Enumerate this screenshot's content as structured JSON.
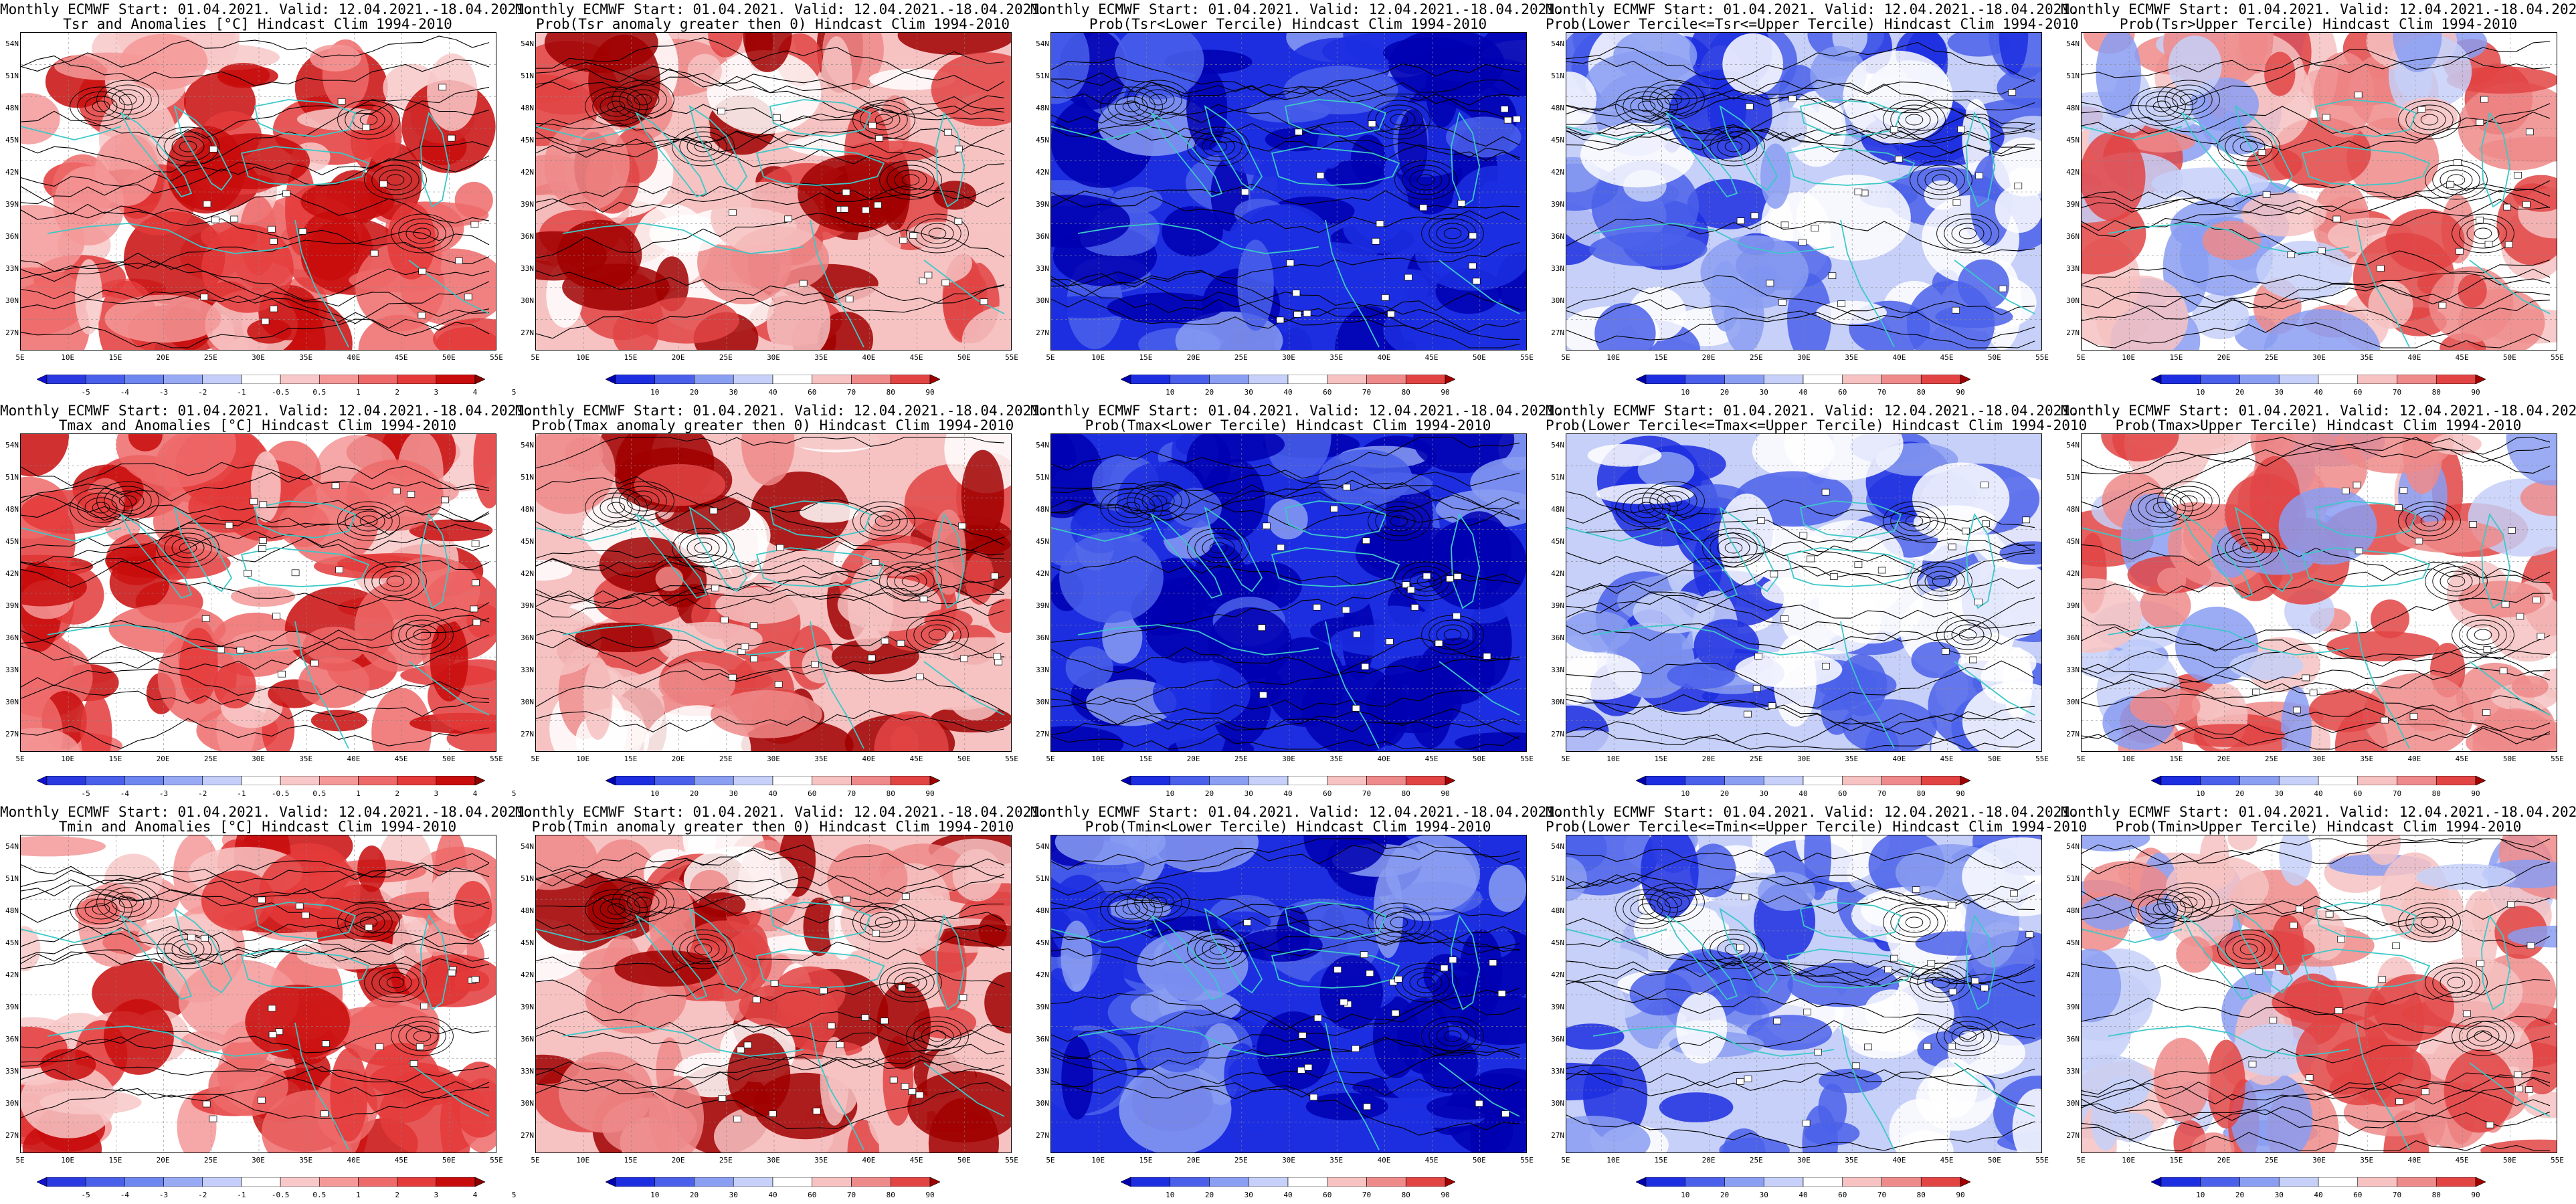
{
  "header": "Monthly ECMWF Start: 01.04.2021. Valid: 12.04.2021.-18.04.2021.",
  "subtitles": [
    [
      "Tsr and Anomalies [°C] Hindcast Clim 1994-2010",
      "Prob(Tsr anomaly greater then 0) Hindcast Clim 1994-2010",
      "Prob(Tsr<Lower Tercile) Hindcast Clim 1994-2010",
      "Prob(Lower Tercile<=Tsr<=Upper Tercile) Hindcast Clim 1994-2010",
      "Prob(Tsr>Upper Tercile) Hindcast Clim 1994-2010"
    ],
    [
      "Tmax and Anomalies [°C] Hindcast Clim 1994-2010",
      "Prob(Tmax anomaly greater then 0) Hindcast Clim 1994-2010",
      "Prob(Tmax<Lower Tercile) Hindcast Clim 1994-2010",
      "Prob(Lower Tercile<=Tmax<=Upper Tercile) Hindcast Clim 1994-2010",
      "Prob(Tmax>Upper Tercile) Hindcast Clim 1994-2010"
    ],
    [
      "Tmin and Anomalies [°C] Hindcast Clim 1994-2010",
      "Prob(Tmin anomaly greater then 0) Hindcast Clim 1994-2010",
      "Prob(Tmin<Lower Tercile) Hindcast Clim 1994-2010",
      "Prob(Lower Tercile<=Tmin<=Upper Tercile) Hindcast Clim 1994-2010",
      "Prob(Tmin>Upper Tercile) Hindcast Clim 1994-2010"
    ]
  ],
  "lat_labels": [
    "54N",
    "51N",
    "48N",
    "45N",
    "42N",
    "39N",
    "36N",
    "33N",
    "30N",
    "27N"
  ],
  "lon_labels": [
    "5E",
    "10E",
    "15E",
    "20E",
    "25E",
    "30E",
    "35E",
    "40E",
    "45E",
    "50E",
    "55E"
  ],
  "colorbars": {
    "anomaly": {
      "labels": [
        "-5",
        "-4",
        "-3",
        "-2",
        "-1",
        "-0.5",
        "0.5",
        "1",
        "2",
        "3",
        "4",
        "5"
      ],
      "colors": [
        "#1010d0",
        "#2a3ae0",
        "#4a60ea",
        "#6e86f0",
        "#98aaf4",
        "#c4cef8",
        "#ffffff",
        "#f8c8c8",
        "#f49898",
        "#ee6a6a",
        "#e43a3a",
        "#c80c0c",
        "#8a0000"
      ]
    },
    "probability": {
      "labels": [
        "10",
        "20",
        "30",
        "40",
        "60",
        "70",
        "80",
        "90"
      ],
      "colors": [
        "#0000b0",
        "#1c2ee0",
        "#4a60ea",
        "#8a9ef2",
        "#c6d0f8",
        "#ffffff",
        "#f6c2c2",
        "#ee8a8a",
        "#e24444",
        "#a00000"
      ]
    }
  },
  "colors": {
    "coastline": "#3cc8c8",
    "contour": "#000000"
  },
  "panel_types": [
    [
      "anomaly",
      "prob_warm",
      "prob_lower",
      "prob_middle",
      "prob_upper"
    ],
    [
      "anomaly",
      "prob_warm",
      "prob_lower",
      "prob_middle",
      "prob_upper"
    ],
    [
      "anomaly",
      "prob_warm",
      "prob_lower",
      "prob_middle",
      "prob_upper"
    ]
  ]
}
